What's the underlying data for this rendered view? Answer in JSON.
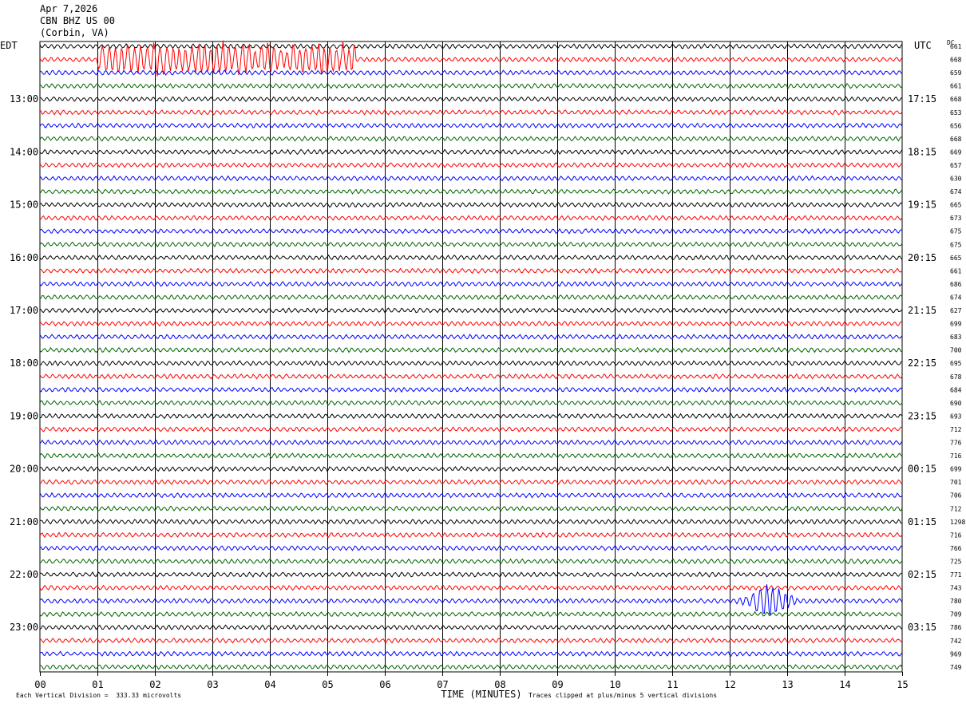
{
  "header": {
    "date": "Apr 7,2026",
    "station": "CBN BHZ US 00",
    "location": "(Corbin, VA)"
  },
  "left_tz": "EDT",
  "right_tz": "UTC",
  "dc_label": "DC",
  "footer": {
    "scale_note": "Each Vertical Division =  333.33 microvolts",
    "clip_note": "Traces clipped at plus/minus 5 vertical divisions"
  },
  "chart_data": {
    "type": "line",
    "title": "CBN BHZ US 00 (Corbin, VA)",
    "xlabel": "TIME (MINUTES)",
    "x_ticks": [
      "00",
      "01",
      "02",
      "03",
      "04",
      "05",
      "06",
      "07",
      "08",
      "09",
      "10",
      "11",
      "12",
      "13",
      "14",
      "15"
    ],
    "xlim": [
      0,
      15
    ],
    "trace_count": 48,
    "trace_colors": [
      "#000000",
      "#ff0000",
      "#0000ff",
      "#006400"
    ],
    "left_hour_labels": [
      "13:00",
      "14:00",
      "15:00",
      "16:00",
      "17:00",
      "18:00",
      "19:00",
      "20:00",
      "21:00",
      "22:00",
      "23:00"
    ],
    "right_hour_labels": [
      "17:15",
      "18:15",
      "19:15",
      "20:15",
      "21:15",
      "22:15",
      "23:15",
      "00:15",
      "01:15",
      "02:15",
      "03:15"
    ],
    "dc_values": [
      "661",
      "668",
      "659",
      "661",
      "668",
      "653",
      "656",
      "668",
      "669",
      "657",
      "630",
      "674",
      "665",
      "673",
      "675",
      "675",
      "665",
      "661",
      "686",
      "674",
      "627",
      "699",
      "683",
      "700",
      "695",
      "678",
      "684",
      "690",
      "693",
      "712",
      "776",
      "716",
      "699",
      "701",
      "706",
      "712",
      "1298",
      "716",
      "766",
      "725",
      "771",
      "743",
      "780",
      "709",
      "786",
      "742",
      "969",
      "749"
    ],
    "events": [
      {
        "trace": 1,
        "start_min": 1.0,
        "end_min": 5.5,
        "amplitude": "clipped"
      },
      {
        "trace": 42,
        "start_min": 12.0,
        "end_min": 13.4,
        "amplitude": "large"
      }
    ]
  }
}
